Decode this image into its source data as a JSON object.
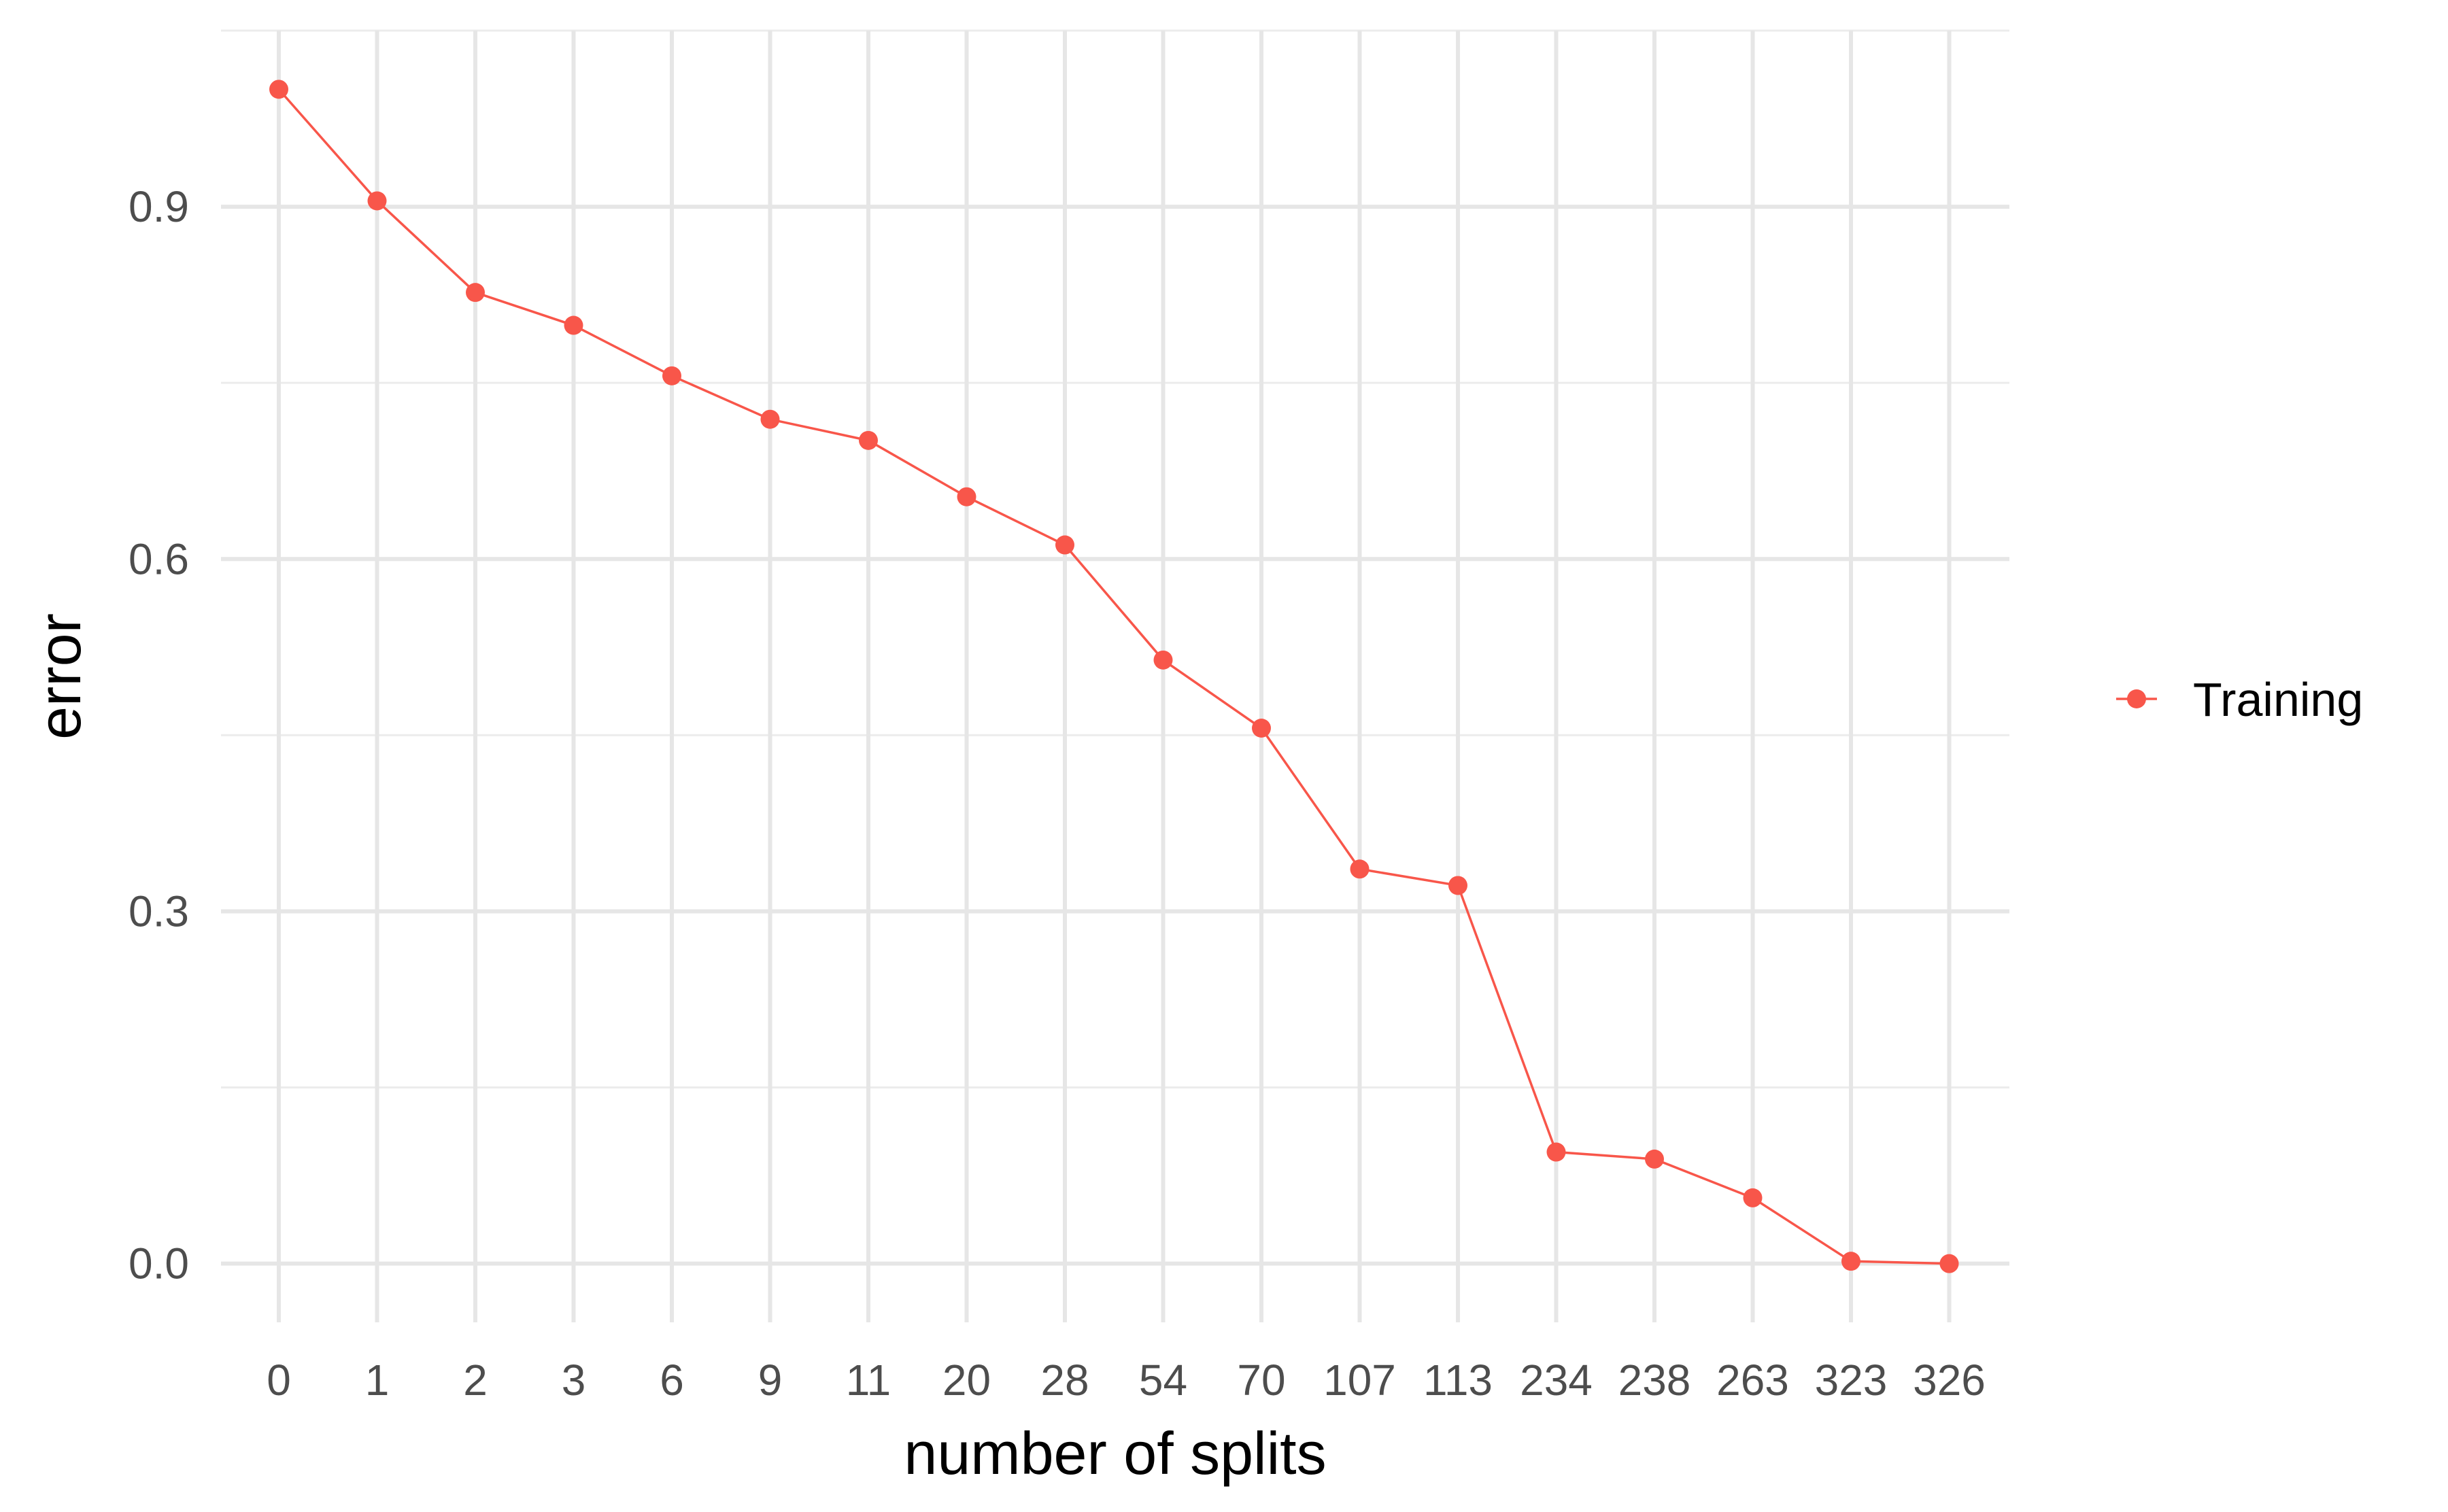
{
  "chart_data": {
    "type": "line",
    "title": "",
    "xlabel": "number of splits",
    "ylabel": "error",
    "categories": [
      "0",
      "1",
      "2",
      "3",
      "6",
      "9",
      "11",
      "20",
      "28",
      "54",
      "70",
      "107",
      "113",
      "234",
      "238",
      "263",
      "323",
      "326"
    ],
    "series": [
      {
        "name": "Training",
        "color": "#f8564a",
        "values": [
          1.0,
          0.905,
          0.827,
          0.799,
          0.756,
          0.719,
          0.701,
          0.653,
          0.612,
          0.514,
          0.456,
          0.336,
          0.322,
          0.095,
          0.089,
          0.056,
          0.002,
          0.0
        ]
      }
    ],
    "ylim": [
      -0.05,
      1.05
    ],
    "yticks": [
      0.0,
      0.3,
      0.6,
      0.9
    ],
    "ytick_labels": [
      "0.0",
      "0.3",
      "0.6",
      "0.9"
    ],
    "grid": true,
    "legend_position": "right"
  }
}
